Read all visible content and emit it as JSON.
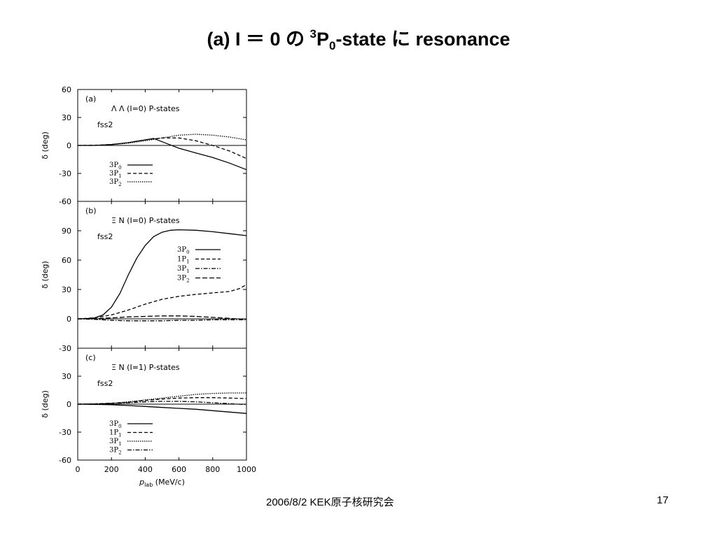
{
  "title": {
    "prefix": "(a) I ＝ 0 の ",
    "sup": "3",
    "main": "P",
    "sub": "0",
    "suffix": "-state に resonance"
  },
  "footer": {
    "center": "2006/8/2  KEK原子核研究会",
    "page": "17"
  },
  "chart_data": [
    {
      "type": "line",
      "panel_label": "(a)",
      "title": "Λ Λ (I=0) P-states",
      "model": "fss2",
      "xlabel": "",
      "ylabel": "δ (deg)",
      "xlim": [
        0,
        1000
      ],
      "ylim": [
        -60,
        60
      ],
      "yticks": [
        -60,
        -30,
        0,
        30,
        60
      ],
      "legend_placement": "lower-left",
      "series": [
        {
          "name": "3P0",
          "label_main": "3P",
          "label_sub": "0",
          "dash": "solid",
          "x": [
            0,
            100,
            200,
            300,
            400,
            450,
            500,
            600,
            700,
            800,
            900,
            1000
          ],
          "y": [
            0,
            0,
            1,
            3,
            6,
            7.5,
            4,
            -3,
            -8,
            -13,
            -19,
            -26
          ]
        },
        {
          "name": "3P1",
          "label_main": "3P",
          "label_sub": "1",
          "dash": "dashed",
          "x": [
            0,
            100,
            200,
            300,
            400,
            500,
            600,
            700,
            800,
            900,
            1000
          ],
          "y": [
            0,
            0.2,
            1,
            3,
            6,
            8,
            8,
            5,
            0,
            -6,
            -14
          ]
        },
        {
          "name": "3P2",
          "label_main": "3P",
          "label_sub": "2",
          "dash": "dotted",
          "x": [
            0,
            100,
            200,
            300,
            400,
            500,
            600,
            700,
            800,
            900,
            1000
          ],
          "y": [
            0,
            0.1,
            0.8,
            2.5,
            5,
            8,
            11,
            12,
            11,
            9,
            6
          ]
        }
      ]
    },
    {
      "type": "line",
      "panel_label": "(b)",
      "title": "Ξ N (I=0) P-states",
      "model": "fss2",
      "xlabel": "",
      "ylabel": "δ (deg)",
      "xlim": [
        0,
        1000
      ],
      "ylim": [
        -30,
        120
      ],
      "yticks": [
        -30,
        0,
        30,
        60,
        90
      ],
      "legend_placement": "upper-right",
      "series": [
        {
          "name": "3P0",
          "label_main": "3P",
          "label_sub": "0",
          "dash": "solid",
          "x": [
            0,
            50,
            100,
            150,
            200,
            250,
            300,
            350,
            400,
            450,
            500,
            550,
            600,
            700,
            800,
            900,
            1000
          ],
          "y": [
            0,
            0.2,
            1,
            4,
            12,
            26,
            45,
            62,
            75,
            84,
            88.5,
            90.5,
            91,
            90.5,
            89,
            87,
            85
          ]
        },
        {
          "name": "1P1",
          "label_main": "1P",
          "label_sub": "1",
          "dash": "dashed",
          "x": [
            0,
            100,
            200,
            300,
            400,
            500,
            600,
            700,
            800,
            900,
            960,
            1000
          ],
          "y": [
            0,
            1,
            4,
            9,
            15,
            20,
            23,
            25,
            26.5,
            28,
            31,
            35
          ]
        },
        {
          "name": "3P1",
          "label_main": "3P",
          "label_sub": "1",
          "dash": "dashdot",
          "x": [
            0,
            100,
            200,
            300,
            400,
            500,
            600,
            700,
            800,
            900,
            1000
          ],
          "y": [
            0,
            -0.5,
            -1.5,
            -2,
            -2,
            -2,
            -1.5,
            -1.5,
            -1,
            -1,
            -1
          ]
        },
        {
          "name": "3P2",
          "label_main": "3P",
          "label_sub": "2",
          "dash": "longdash",
          "x": [
            0,
            100,
            200,
            300,
            400,
            500,
            600,
            700,
            800,
            900,
            1000
          ],
          "y": [
            0,
            0.3,
            1,
            2,
            2.5,
            3,
            3,
            2.5,
            1.5,
            0.5,
            -0.5
          ]
        }
      ]
    },
    {
      "type": "line",
      "panel_label": "(c)",
      "title": "Ξ N (I=1) P-states",
      "model": "fss2",
      "xlabel": "p_lab (MeV/c)",
      "ylabel": "δ (deg)",
      "xlim": [
        0,
        1000
      ],
      "ylim": [
        -60,
        60
      ],
      "yticks": [
        -60,
        -30,
        0,
        30
      ],
      "xticks": [
        0,
        200,
        400,
        600,
        800,
        1000
      ],
      "legend_placement": "lower-left",
      "series": [
        {
          "name": "3P0",
          "label_main": "3P",
          "label_sub": "0",
          "dash": "solid",
          "x": [
            0,
            100,
            200,
            300,
            400,
            500,
            600,
            700,
            800,
            900,
            1000
          ],
          "y": [
            0,
            -0.2,
            -0.7,
            -1.5,
            -2.5,
            -3.5,
            -4.5,
            -5.5,
            -7,
            -8.5,
            -10
          ]
        },
        {
          "name": "1P1",
          "label_main": "1P",
          "label_sub": "1",
          "dash": "dashed",
          "x": [
            0,
            100,
            200,
            300,
            400,
            500,
            600,
            700,
            800,
            900,
            1000
          ],
          "y": [
            0,
            0.3,
            1,
            2,
            4,
            5.5,
            6.5,
            7,
            7,
            6.5,
            6
          ]
        },
        {
          "name": "3P1",
          "label_main": "3P",
          "label_sub": "1",
          "dash": "dotted",
          "x": [
            0,
            100,
            200,
            300,
            400,
            500,
            600,
            700,
            800,
            900,
            1000
          ],
          "y": [
            0,
            0.3,
            1,
            2.5,
            4.5,
            6.5,
            8.5,
            10.5,
            11.5,
            12,
            12
          ]
        },
        {
          "name": "3P2",
          "label_main": "3P",
          "label_sub": "2",
          "dash": "dashdot",
          "x": [
            0,
            100,
            200,
            300,
            400,
            500,
            600,
            700,
            800,
            900,
            1000
          ],
          "y": [
            0,
            0.2,
            0.7,
            1.5,
            2.5,
            3,
            3,
            2.5,
            1.5,
            0.5,
            -0.5
          ]
        }
      ]
    }
  ]
}
